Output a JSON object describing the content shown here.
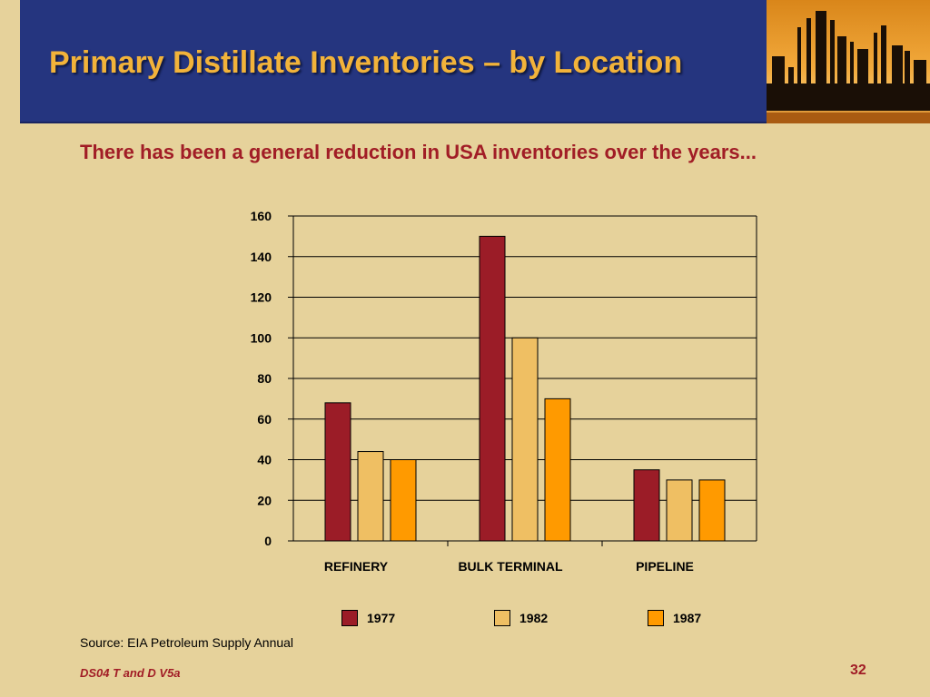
{
  "slide": {
    "title": "Primary Distillate Inventories – by Location",
    "subtitle": "There has been a general reduction in USA inventories over the years...",
    "source": "Source: EIA Petroleum Supply Annual",
    "footer": "DS04 T and D V5a",
    "page_number": "32"
  },
  "colors": {
    "header_bg": "#25357f",
    "title": "#f2b33a",
    "subtitle": "#a11d26",
    "background": "#e6d29b"
  },
  "header_image": {
    "icon": "refinery-silhouette-photo"
  },
  "chart_data": {
    "type": "bar",
    "categories": [
      "REFINERY",
      "BULK TERMINAL",
      "PIPELINE"
    ],
    "series": [
      {
        "name": "1977",
        "values": [
          68,
          150,
          35
        ],
        "color": "#9b1c27"
      },
      {
        "name": "1982",
        "values": [
          44,
          100,
          30
        ],
        "color": "#efbf63"
      },
      {
        "name": "1987",
        "values": [
          40,
          70,
          30
        ],
        "color": "#ff9a00"
      }
    ],
    "yticks": [
      0,
      20,
      40,
      60,
      80,
      100,
      120,
      140,
      160
    ],
    "ylim": [
      0,
      160
    ],
    "grid": true,
    "legend_position": "bottom"
  }
}
